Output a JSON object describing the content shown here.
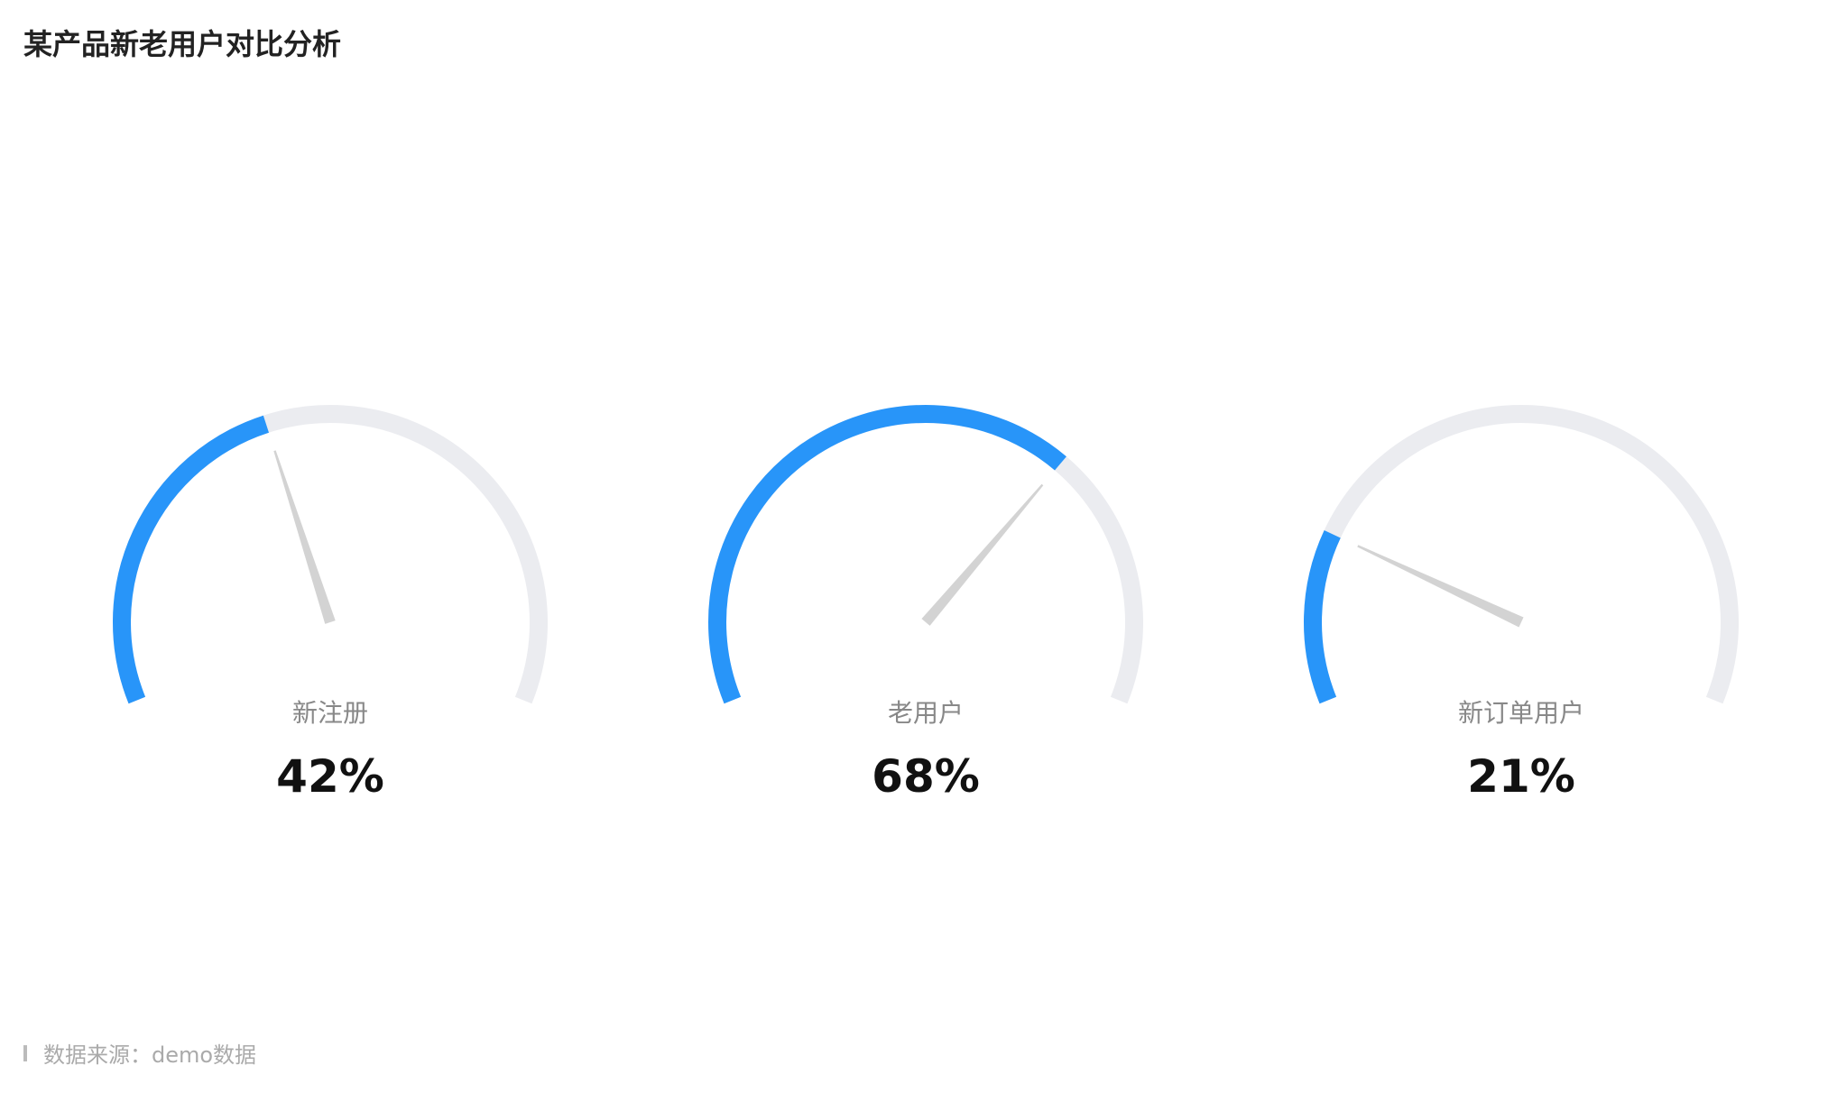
{
  "title": "某产品新老用户对比分析",
  "source": "数据来源：demo数据",
  "colors": {
    "progress": "#2895F9",
    "track": "#EBECF0",
    "pointer": "#D3D3D3"
  },
  "chart_data": {
    "type": "gauge",
    "range": [
      0,
      100
    ],
    "series": [
      {
        "name": "新注册",
        "value": 42,
        "label": "42%"
      },
      {
        "name": "老用户",
        "value": 68,
        "label": "68%"
      },
      {
        "name": "新订单用户",
        "value": 21,
        "label": "21%"
      }
    ]
  }
}
